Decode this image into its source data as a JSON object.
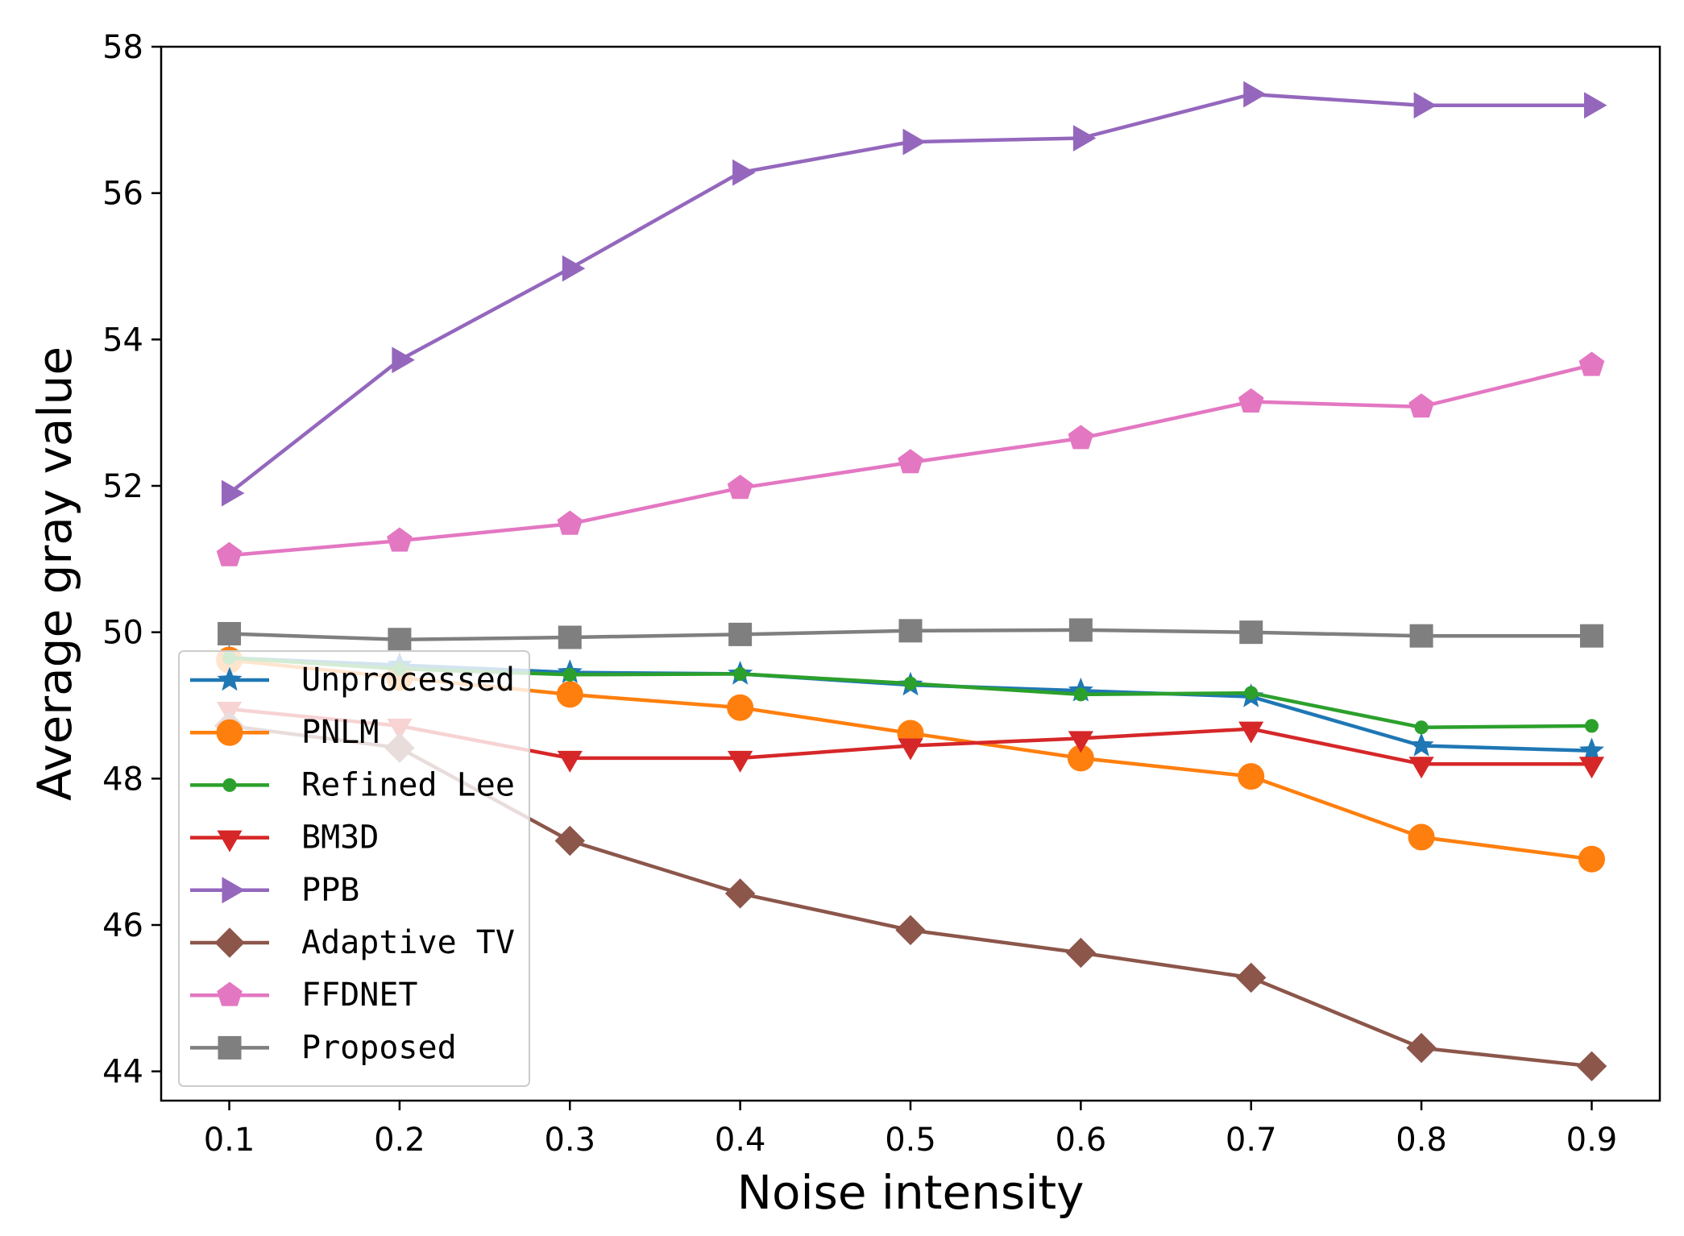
{
  "chart_data": {
    "type": "line",
    "xlabel": "Noise intensity",
    "ylabel": "Average gray value",
    "x": [
      0.1,
      0.2,
      0.3,
      0.4,
      0.5,
      0.6,
      0.7,
      0.8,
      0.9
    ],
    "x_tick_labels": [
      "0.1",
      "0.2",
      "0.3",
      "0.4",
      "0.5",
      "0.6",
      "0.7",
      "0.8",
      "0.9"
    ],
    "xlim": [
      0.06,
      0.94
    ],
    "ylim": [
      43.6,
      58.0
    ],
    "y_ticks": [
      44,
      46,
      48,
      50,
      52,
      54,
      56,
      58
    ],
    "y_tick_labels": [
      "44",
      "46",
      "48",
      "50",
      "52",
      "54",
      "56",
      "58"
    ],
    "grid": false,
    "legend_position": "lower-left",
    "series": [
      {
        "name": "Unprocessed",
        "color": "#1f77b4",
        "marker": "star",
        "values": [
          49.65,
          49.55,
          49.45,
          49.43,
          49.28,
          49.2,
          49.12,
          48.45,
          48.38
        ]
      },
      {
        "name": "PNLM",
        "color": "#ff7f0e",
        "marker": "circle",
        "values": [
          49.62,
          49.38,
          49.15,
          48.97,
          48.62,
          48.28,
          48.03,
          47.2,
          46.9
        ]
      },
      {
        "name": "Refined Lee",
        "color": "#2ca02c",
        "marker": "point",
        "values": [
          49.65,
          49.5,
          49.42,
          49.43,
          49.3,
          49.15,
          49.17,
          48.7,
          48.72
        ]
      },
      {
        "name": "BM3D",
        "color": "#d62728",
        "marker": "triangle-down",
        "values": [
          48.95,
          48.72,
          48.28,
          48.28,
          48.45,
          48.55,
          48.68,
          48.2,
          48.2
        ]
      },
      {
        "name": "PPB",
        "color": "#9467bd",
        "marker": "triangle-right",
        "values": [
          51.9,
          53.72,
          54.97,
          56.28,
          56.7,
          56.75,
          57.35,
          57.2,
          57.2
        ]
      },
      {
        "name": "Adaptive TV",
        "color": "#8c564b",
        "marker": "diamond",
        "values": [
          48.72,
          48.42,
          47.15,
          46.43,
          45.93,
          45.62,
          45.28,
          44.32,
          44.07
        ]
      },
      {
        "name": "FFDNET",
        "color": "#e377c2",
        "marker": "pentagon",
        "values": [
          51.05,
          51.25,
          51.48,
          51.97,
          52.32,
          52.65,
          53.15,
          53.08,
          53.65
        ]
      },
      {
        "name": "Proposed",
        "color": "#7f7f7f",
        "marker": "square",
        "values": [
          49.98,
          49.9,
          49.93,
          49.97,
          50.02,
          50.03,
          50.0,
          49.95,
          49.95
        ]
      }
    ]
  }
}
